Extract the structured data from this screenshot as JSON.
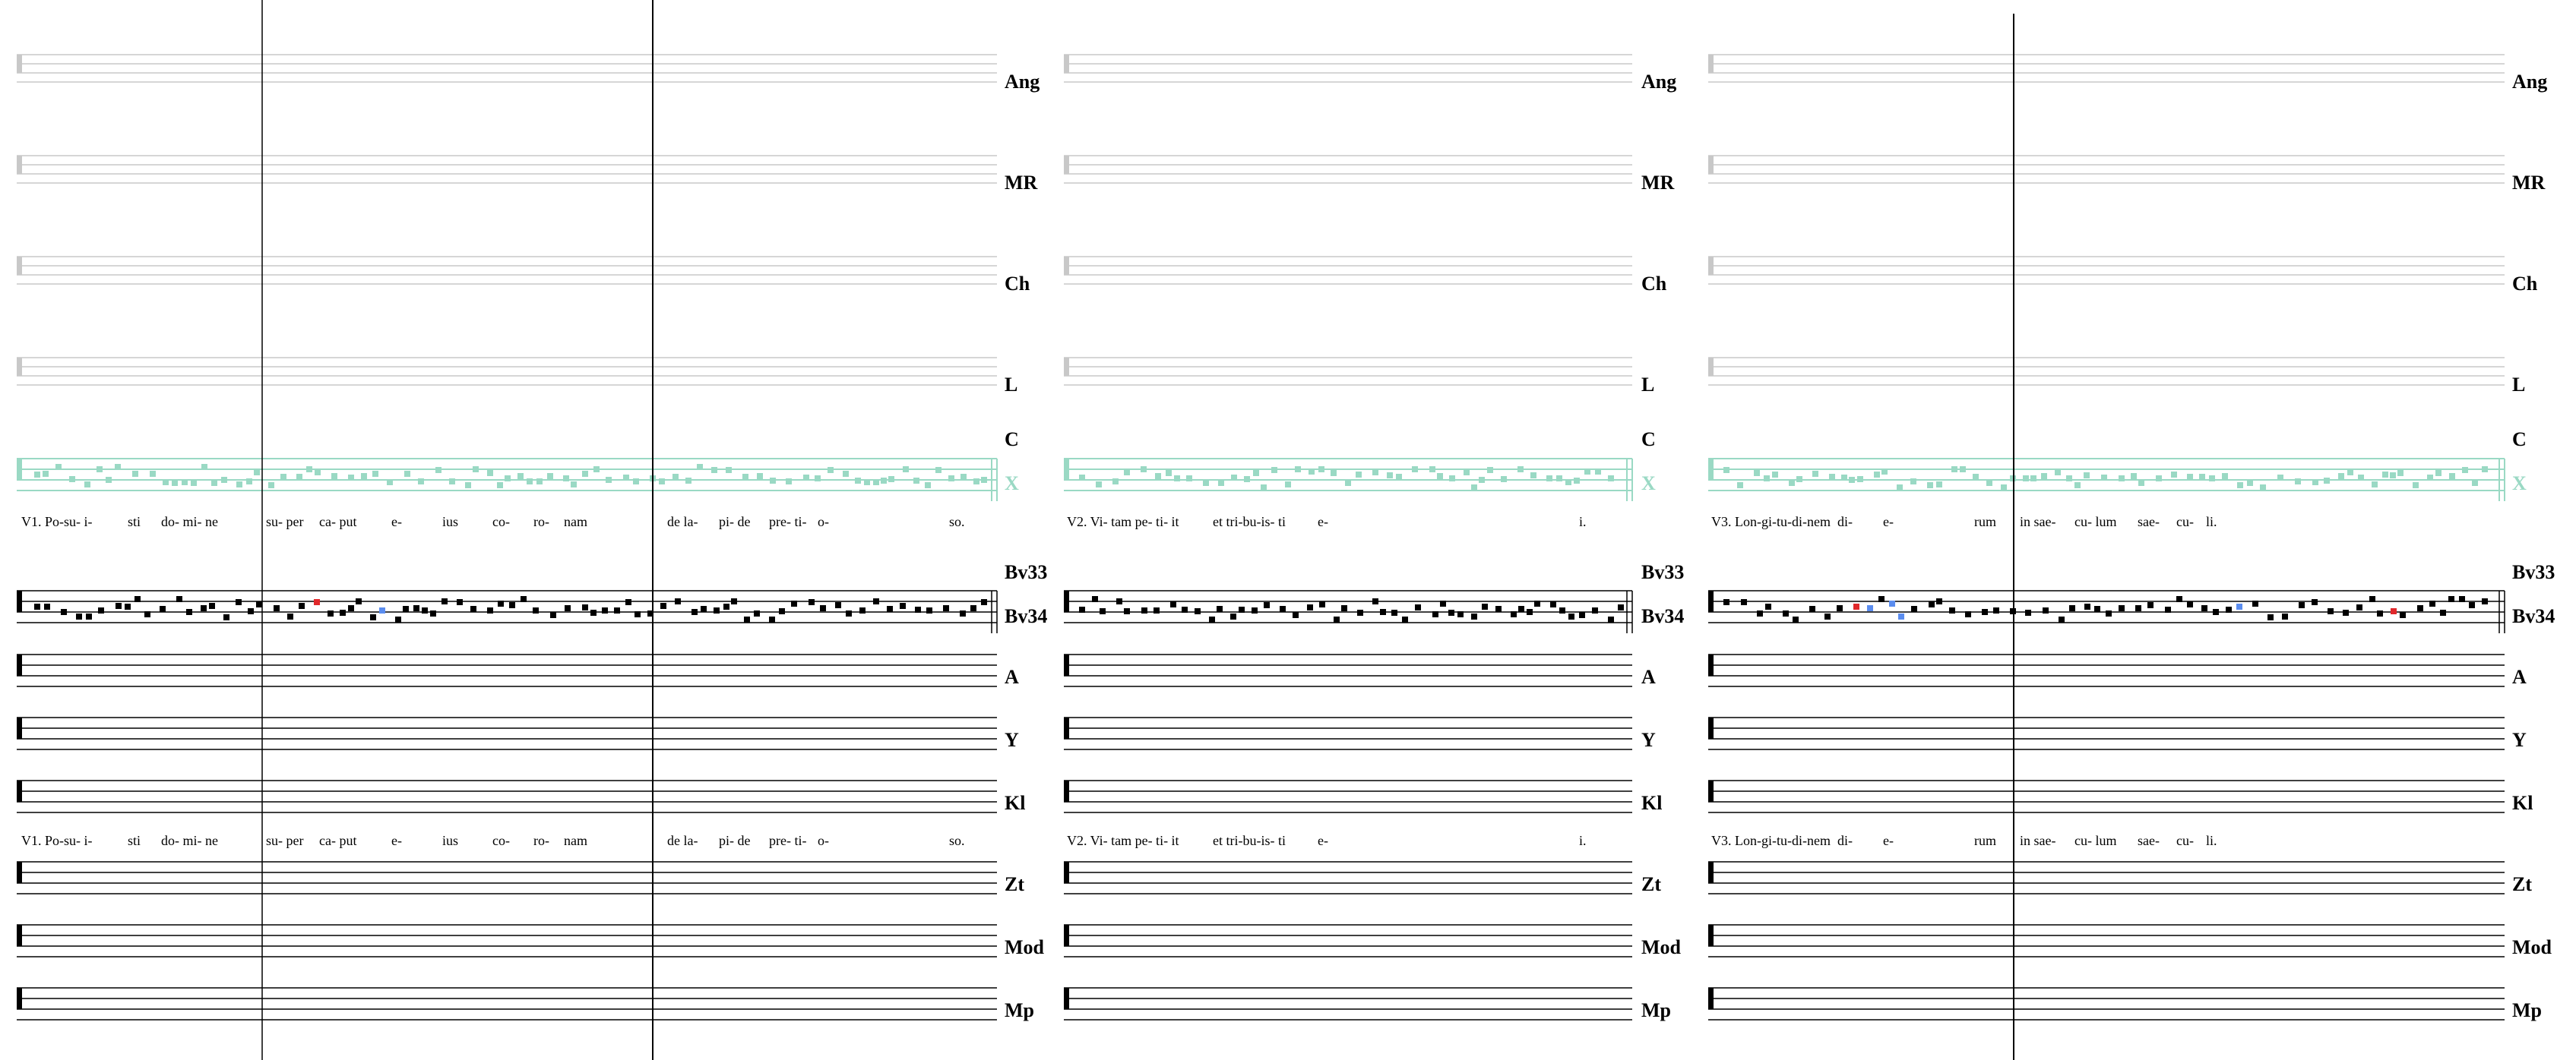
{
  "colors": {
    "staff_gray": "#c8c8c8",
    "staff_black": "#000000",
    "teal": "#9ad9c4",
    "red": "#e0282b",
    "blue": "#5b8def"
  },
  "columns": [
    {
      "id": "v1",
      "labels": [
        "Ang",
        "MR",
        "Ch",
        "L",
        "C",
        "X",
        "Bv33",
        "Bv34",
        "A",
        "Y",
        "Kl",
        "Zt",
        "Mod",
        "Mp"
      ],
      "lyrics_top": [
        "V1. Po-su- i-",
        "sti",
        "do- mi- ne",
        "su- per",
        "ca- put",
        "e-",
        "ius",
        "co-",
        "ro-",
        "nam",
        "de la-",
        "pi- de",
        "pre- ti-",
        "o-",
        "so."
      ],
      "lyrics_bottom": [
        "V1. Po-su- i-",
        "sti",
        "do- mi- ne",
        "su- per",
        "ca- put",
        "e-",
        "ius",
        "co-",
        "ro-",
        "nam",
        "de la-",
        "pi- de",
        "pre- ti-",
        "o-",
        "so."
      ]
    },
    {
      "id": "v2",
      "labels": [
        "Ang",
        "MR",
        "Ch",
        "L",
        "C",
        "X",
        "Bv33",
        "Bv34",
        "A",
        "Y",
        "Kl",
        "Zt",
        "Mod",
        "Mp"
      ],
      "lyrics_top": [
        "V2. Vi- tam pe- ti- it",
        "et tri-bu-is- ti",
        "e-",
        "i."
      ],
      "lyrics_bottom": [
        "V2. Vi- tam pe- ti- it",
        "et tri-bu-is- ti",
        "e-",
        "i."
      ]
    },
    {
      "id": "v3",
      "labels": [
        "Ang",
        "MR",
        "Ch",
        "L",
        "C",
        "X",
        "Bv33",
        "Bv34",
        "A",
        "Y",
        "Kl",
        "Zt",
        "Mod",
        "Mp"
      ],
      "lyrics_top": [
        "V3. Lon-gi-tu-di-nem",
        "di-",
        "e-",
        "rum",
        "in sae-",
        "cu- lum",
        "sae-",
        "cu-",
        "li."
      ],
      "lyrics_bottom": [
        "V3. Lon-gi-tu-di-nem",
        "di-",
        "e-",
        "rum",
        "in sae-",
        "cu- lum",
        "sae-",
        "cu-",
        "li."
      ]
    }
  ]
}
